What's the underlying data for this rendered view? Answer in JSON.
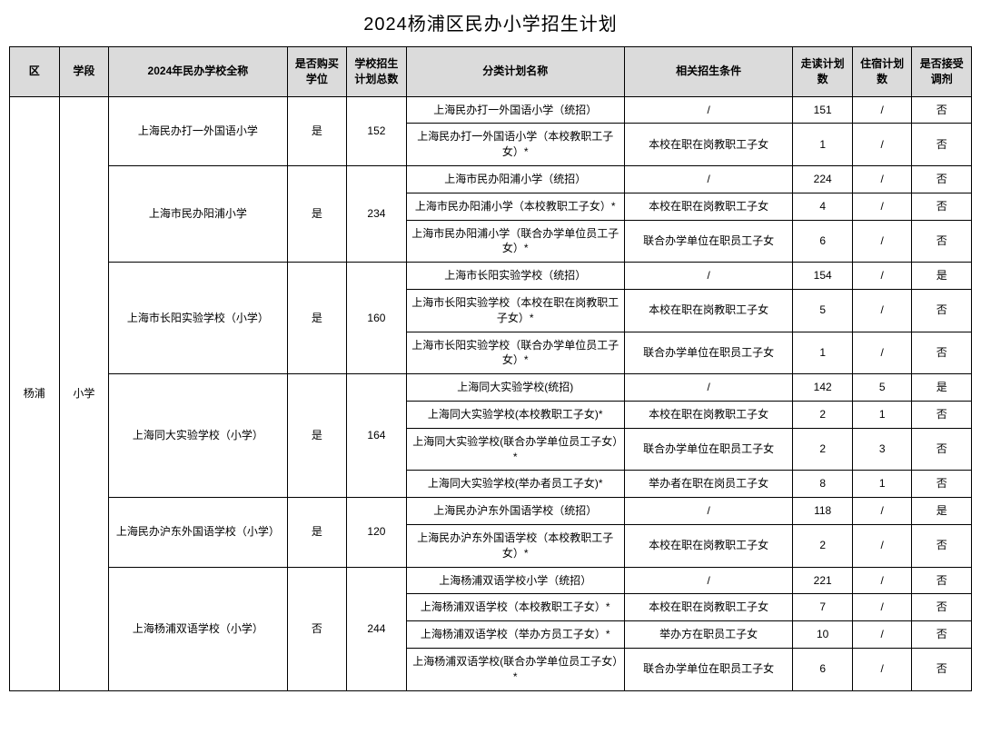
{
  "title": "2024杨浦区民办小学招生计划",
  "headers": {
    "district": "区",
    "stage": "学段",
    "school": "2024年民办学校全称",
    "purchase": "是否购买学位",
    "total": "学校招生计划总数",
    "plan_name": "分类计划名称",
    "condition": "相关招生条件",
    "day": "走读计划数",
    "board": "住宿计划数",
    "adjust": "是否接受调剂"
  },
  "district": "杨浦",
  "stage": "小学",
  "schools": [
    {
      "name": "上海民办打一外国语小学",
      "purchase": "是",
      "total": "152",
      "plans": [
        {
          "plan_name": "上海民办打一外国语小学（统招）",
          "condition": "/",
          "day": "151",
          "board": "/",
          "adjust": "否"
        },
        {
          "plan_name": "上海民办打一外国语小学（本校教职工子女）*",
          "condition": "本校在职在岗教职工子女",
          "day": "1",
          "board": "/",
          "adjust": "否"
        }
      ]
    },
    {
      "name": "上海市民办阳浦小学",
      "purchase": "是",
      "total": "234",
      "plans": [
        {
          "plan_name": "上海市民办阳浦小学（统招）",
          "condition": "/",
          "day": "224",
          "board": "/",
          "adjust": "否"
        },
        {
          "plan_name": "上海市民办阳浦小学（本校教职工子女）*",
          "condition": "本校在职在岗教职工子女",
          "day": "4",
          "board": "/",
          "adjust": "否"
        },
        {
          "plan_name": "上海市民办阳浦小学（联合办学单位员工子女）*",
          "condition": "联合办学单位在职员工子女",
          "day": "6",
          "board": "/",
          "adjust": "否"
        }
      ]
    },
    {
      "name": "上海市长阳实验学校（小学）",
      "purchase": "是",
      "total": "160",
      "plans": [
        {
          "plan_name": "上海市长阳实验学校（统招）",
          "condition": "/",
          "day": "154",
          "board": "/",
          "adjust": "是"
        },
        {
          "plan_name": "上海市长阳实验学校（本校在职在岗教职工子女）*",
          "condition": "本校在职在岗教职工子女",
          "day": "5",
          "board": "/",
          "adjust": "否"
        },
        {
          "plan_name": "上海市长阳实验学校（联合办学单位员工子女）*",
          "condition": "联合办学单位在职员工子女",
          "day": "1",
          "board": "/",
          "adjust": "否"
        }
      ]
    },
    {
      "name": "上海同大实验学校（小学）",
      "purchase": "是",
      "total": "164",
      "plans": [
        {
          "plan_name": "上海同大实验学校(统招)",
          "condition": "/",
          "day": "142",
          "board": "5",
          "adjust": "是"
        },
        {
          "plan_name": "上海同大实验学校(本校教职工子女)*",
          "condition": "本校在职在岗教职工子女",
          "day": "2",
          "board": "1",
          "adjust": "否"
        },
        {
          "plan_name": "上海同大实验学校(联合办学单位员工子女）*",
          "condition": "联合办学单位在职员工子女",
          "day": "2",
          "board": "3",
          "adjust": "否"
        },
        {
          "plan_name": "上海同大实验学校(举办者员工子女)*",
          "condition": "举办者在职在岗员工子女",
          "day": "8",
          "board": "1",
          "adjust": "否"
        }
      ]
    },
    {
      "name": "上海民办沪东外国语学校（小学）",
      "purchase": "是",
      "total": "120",
      "plans": [
        {
          "plan_name": "上海民办沪东外国语学校（统招）",
          "condition": "/",
          "day": "118",
          "board": "/",
          "adjust": "是"
        },
        {
          "plan_name": "上海民办沪东外国语学校（本校教职工子女）*",
          "condition": "本校在职在岗教职工子女",
          "day": "2",
          "board": "/",
          "adjust": "否"
        }
      ]
    },
    {
      "name": "上海杨浦双语学校（小学）",
      "purchase": "否",
      "total": "244",
      "plans": [
        {
          "plan_name": "上海杨浦双语学校小学（统招）",
          "condition": "/",
          "day": "221",
          "board": "/",
          "adjust": "否"
        },
        {
          "plan_name": "上海杨浦双语学校（本校教职工子女）*",
          "condition": "本校在职在岗教职工子女",
          "day": "7",
          "board": "/",
          "adjust": "否"
        },
        {
          "plan_name": "上海杨浦双语学校（举办方员工子女）*",
          "condition": "举办方在职员工子女",
          "day": "10",
          "board": "/",
          "adjust": "否"
        },
        {
          "plan_name": "上海杨浦双语学校(联合办学单位员工子女）*",
          "condition": "联合办学单位在职员工子女",
          "day": "6",
          "board": "/",
          "adjust": "否"
        }
      ]
    }
  ]
}
